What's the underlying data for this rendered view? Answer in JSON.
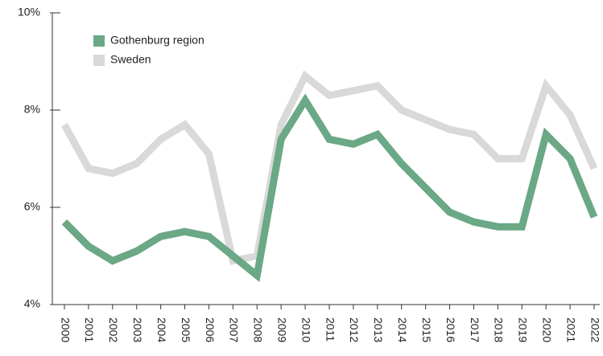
{
  "chart_data": {
    "type": "line",
    "categories": [
      "2000",
      "2001",
      "2002",
      "2003",
      "2004",
      "2005",
      "2006",
      "2007",
      "2008",
      "2009",
      "2010",
      "2011",
      "2012",
      "2013",
      "2014",
      "2015",
      "2016",
      "2017",
      "2018",
      "2019",
      "2020",
      "2021",
      "2022"
    ],
    "series": [
      {
        "name": "Gothenburg region",
        "color": "#6aa886",
        "values": [
          5.7,
          5.2,
          4.9,
          5.1,
          5.4,
          5.5,
          5.4,
          5.0,
          4.6,
          7.4,
          8.2,
          7.4,
          7.3,
          7.5,
          6.9,
          6.4,
          5.9,
          5.7,
          5.6,
          5.6,
          7.5,
          7.0,
          5.8
        ]
      },
      {
        "name": "Sweden",
        "color": "#d9d9d9",
        "values": [
          7.7,
          6.8,
          6.7,
          6.9,
          7.4,
          7.7,
          7.1,
          4.9,
          5.0,
          7.7,
          8.7,
          8.3,
          8.4,
          8.5,
          8.0,
          7.8,
          7.6,
          7.5,
          7.0,
          7.0,
          8.5,
          7.9,
          6.8
        ]
      }
    ],
    "ylim": [
      4,
      10
    ],
    "yticks": [
      {
        "value": 4,
        "label": "4%"
      },
      {
        "value": 6,
        "label": "6%"
      },
      {
        "value": 8,
        "label": "8%"
      },
      {
        "value": 10,
        "label": "10%"
      }
    ],
    "legend": "upper-left"
  }
}
